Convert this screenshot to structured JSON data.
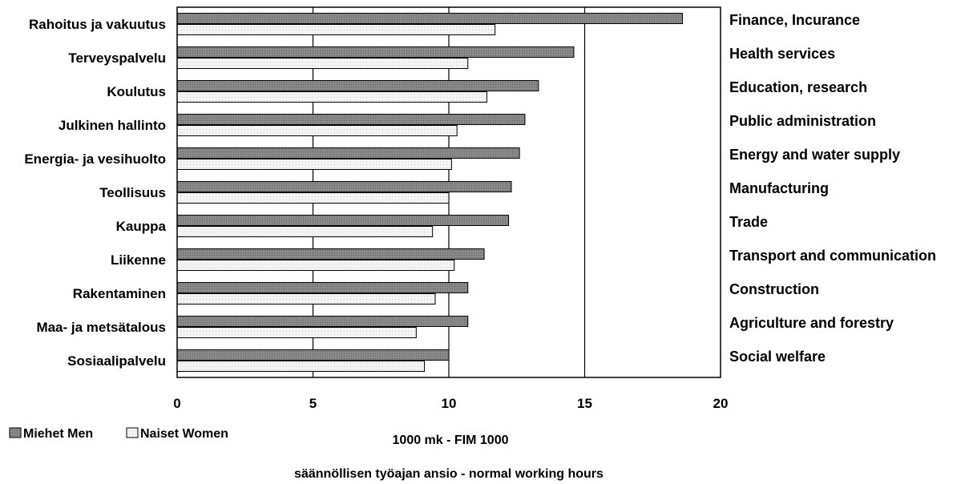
{
  "chart_data": {
    "type": "bar",
    "orientation": "horizontal",
    "categories": [
      "Rahoitus ja vakuutus",
      "Terveyspalvelu",
      "Koulutus",
      "Julkinen hallinto",
      "Energia- ja vesihuolto",
      "Teollisuus",
      "Kauppa",
      "Liikenne",
      "Rakentaminen",
      "Maa- ja metsätalous",
      "Sosiaalipalvelu"
    ],
    "categories_en": [
      "Finance, Incurance",
      "Health services",
      "Education, research",
      "Public administration",
      "Energy and water supply",
      "Manufacturing",
      "Trade",
      "Transport and communication",
      "Construction",
      "Agriculture and forestry",
      "Social welfare"
    ],
    "series": [
      {
        "name": "Miehet Men",
        "color": "#8c8c8c",
        "values": [
          18.6,
          14.6,
          13.3,
          12.8,
          12.6,
          12.3,
          12.2,
          11.3,
          10.7,
          10.7,
          10.0
        ]
      },
      {
        "name": "Naiset Women",
        "color": "#f2f2f2",
        "values": [
          11.7,
          10.7,
          11.4,
          10.3,
          10.1,
          10.0,
          9.4,
          10.2,
          9.5,
          8.8,
          9.1
        ]
      }
    ],
    "xlim": [
      0,
      20
    ],
    "xticks": [
      "0",
      "5",
      "10",
      "15",
      "20"
    ],
    "xlabel": "1000 mk - FIM 1000",
    "caption": "säännöllisen työajan ansio - normal working hours",
    "grid": "vertical",
    "legend": "bottom-left"
  }
}
